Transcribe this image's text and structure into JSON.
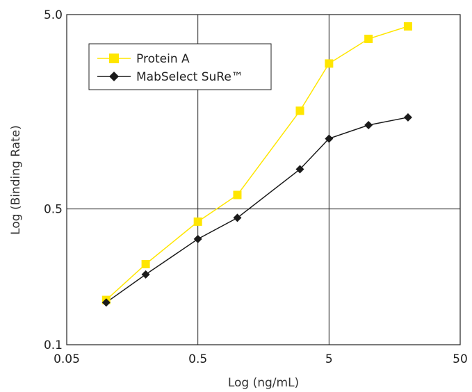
{
  "chart_data": {
    "type": "line",
    "title": "",
    "xlabel": "Log (ng/mL)",
    "ylabel": "Log (Binding Rate)",
    "x_scale": "log",
    "y_scale": "log",
    "xlim": [
      0.05,
      50
    ],
    "ylim": [
      0.1,
      5.0
    ],
    "x_ticks": [
      {
        "value": 0.05,
        "label": "0.05"
      },
      {
        "value": 0.5,
        "label": "0.5"
      },
      {
        "value": 5,
        "label": "5"
      },
      {
        "value": 50,
        "label": "50"
      }
    ],
    "y_ticks": [
      {
        "value": 0.1,
        "label": "0.1"
      },
      {
        "value": 0.5,
        "label": "0.5"
      },
      {
        "value": 5.0,
        "label": "5.0"
      }
    ],
    "grid": true,
    "legend_position": "top-left",
    "series": [
      {
        "name": "Protein A",
        "color": "#ffe600",
        "marker": "square",
        "x": [
          0.1,
          0.2,
          0.5,
          1.0,
          3.0,
          5.0,
          10.0,
          20.0
        ],
        "y": [
          0.17,
          0.26,
          0.43,
          0.59,
          1.6,
          2.8,
          3.75,
          4.35
        ]
      },
      {
        "name": "MabSelect SuRe™",
        "color": "#1a1a1a",
        "marker": "diamond",
        "x": [
          0.1,
          0.2,
          0.5,
          1.0,
          3.0,
          5.0,
          10.0,
          20.0
        ],
        "y": [
          0.165,
          0.23,
          0.35,
          0.45,
          0.8,
          1.15,
          1.35,
          1.48
        ]
      }
    ]
  }
}
